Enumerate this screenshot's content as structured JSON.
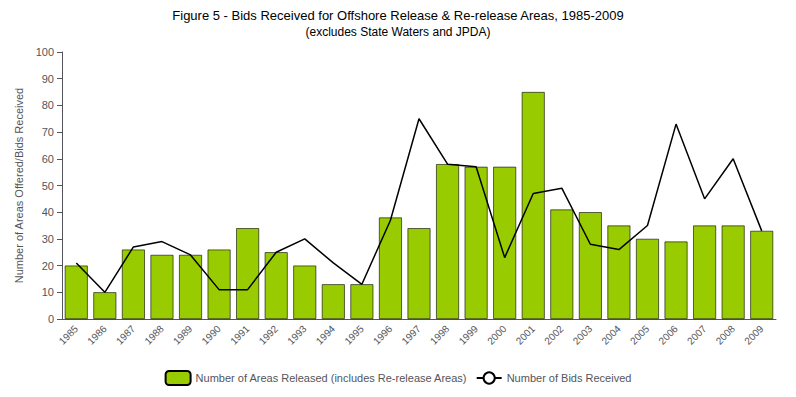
{
  "chart_data": {
    "type": "bar",
    "title": "Figure 5 - Bids Received for Offshore Release & Re-release Areas, 1985-2009",
    "subtitle": "(excludes State Waters and JPDA)",
    "ylabel": "Number of Areas Offered/Bids Received",
    "categories": [
      "1985",
      "1986",
      "1987",
      "1988",
      "1989",
      "1990",
      "1991",
      "1992",
      "1993",
      "1994",
      "1995",
      "1996",
      "1997",
      "1998",
      "1999",
      "2000",
      "2001",
      "2002",
      "2003",
      "2004",
      "2005",
      "2006",
      "2007",
      "2008",
      "2009"
    ],
    "series": [
      {
        "name": "Number of Areas Released (includes Re-release Areas)",
        "type": "bar",
        "color": "#99CC00",
        "values": [
          20,
          10,
          26,
          24,
          24,
          26,
          34,
          25,
          20,
          13,
          13,
          38,
          34,
          58,
          57,
          57,
          85,
          41,
          40,
          35,
          30,
          29,
          35,
          35,
          33
        ]
      },
      {
        "name": "Number of Bids Received",
        "type": "line",
        "color": "#000000",
        "values": [
          21,
          10,
          27,
          29,
          24,
          11,
          11,
          25,
          30,
          21,
          13,
          37,
          75,
          58,
          57,
          23,
          47,
          49,
          28,
          26,
          35,
          73,
          45,
          60,
          33
        ]
      }
    ],
    "ylim": [
      0,
      100
    ],
    "yticks": [
      0,
      10,
      20,
      30,
      40,
      50,
      60,
      70,
      80,
      90,
      100
    ],
    "grid": false,
    "legend": "bottom"
  }
}
